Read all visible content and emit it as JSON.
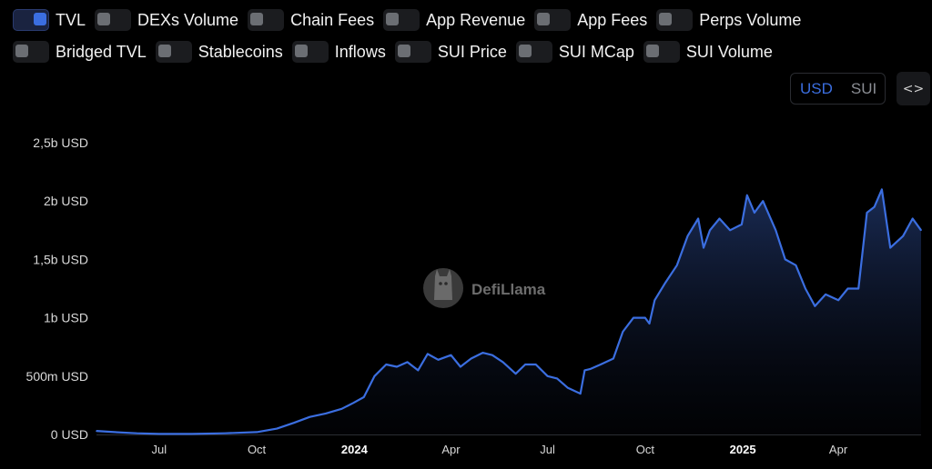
{
  "toggles": {
    "row1": [
      {
        "label": "TVL",
        "on": true
      },
      {
        "label": "DEXs Volume",
        "on": false
      },
      {
        "label": "Chain Fees",
        "on": false
      },
      {
        "label": "App Revenue",
        "on": false
      },
      {
        "label": "App Fees",
        "on": false
      },
      {
        "label": "Perps Volume",
        "on": false
      }
    ],
    "row2": [
      {
        "label": "Bridged TVL",
        "on": false
      },
      {
        "label": "Stablecoins",
        "on": false
      },
      {
        "label": "Inflows",
        "on": false
      },
      {
        "label": "SUI Price",
        "on": false
      },
      {
        "label": "SUI MCap",
        "on": false
      },
      {
        "label": "SUI Volume",
        "on": false
      }
    ]
  },
  "denomination": {
    "usd": "USD",
    "sui": "SUI",
    "active": "USD"
  },
  "embed": {
    "icon": "code-icon",
    "symbol": "<>"
  },
  "watermark": {
    "text": "DefiLlama",
    "icon": "llama-logo"
  },
  "colors": {
    "line": "#3b6ee0",
    "background": "#000000"
  },
  "chart_data": {
    "type": "area",
    "series": [
      {
        "name": "TVL",
        "x": [
          "2023-05-03",
          "2023-05-20",
          "2023-06-10",
          "2023-07-01",
          "2023-08-01",
          "2023-09-01",
          "2023-10-01",
          "2023-10-20",
          "2023-11-05",
          "2023-11-20",
          "2023-12-05",
          "2023-12-20",
          "2023-12-31",
          "2024-01-10",
          "2024-01-20",
          "2024-01-31",
          "2024-02-10",
          "2024-02-20",
          "2024-03-01",
          "2024-03-10",
          "2024-03-20",
          "2024-04-01",
          "2024-04-10",
          "2024-04-20",
          "2024-05-01",
          "2024-05-10",
          "2024-05-20",
          "2024-06-01",
          "2024-06-10",
          "2024-06-20",
          "2024-07-01",
          "2024-07-10",
          "2024-07-20",
          "2024-08-01",
          "2024-08-05",
          "2024-08-10",
          "2024-08-20",
          "2024-09-01",
          "2024-09-10",
          "2024-09-20",
          "2024-10-01",
          "2024-10-05",
          "2024-10-10",
          "2024-10-20",
          "2024-10-31",
          "2024-11-10",
          "2024-11-20",
          "2024-11-25",
          "2024-12-01",
          "2024-12-10",
          "2024-12-20",
          "2024-12-31",
          "2025-01-05",
          "2025-01-12",
          "2025-01-20",
          "2025-02-01",
          "2025-02-10",
          "2025-02-20",
          "2025-03-01",
          "2025-03-10",
          "2025-03-20",
          "2025-04-01",
          "2025-04-10",
          "2025-04-20",
          "2025-04-28",
          "2025-05-05",
          "2025-05-12",
          "2025-05-20",
          "2025-06-01",
          "2025-06-10",
          "2025-06-18"
        ],
        "values": [
          30,
          20,
          10,
          5,
          5,
          10,
          20,
          50,
          100,
          150,
          180,
          220,
          270,
          320,
          500,
          600,
          580,
          620,
          550,
          690,
          640,
          680,
          580,
          650,
          700,
          680,
          620,
          520,
          600,
          600,
          500,
          480,
          400,
          350,
          550,
          560,
          600,
          650,
          880,
          1000,
          1000,
          950,
          1150,
          1300,
          1450,
          1700,
          1850,
          1600,
          1750,
          1850,
          1750,
          1800,
          2050,
          1900,
          2000,
          1750,
          1500,
          1450,
          1250,
          1100,
          1200,
          1150,
          1250,
          1250,
          1900,
          1950,
          2100,
          1600,
          1700,
          1850,
          1750
        ]
      }
    ],
    "y_ticks": [
      {
        "value": 0,
        "label": "0 USD"
      },
      {
        "value": 500,
        "label": "500m USD"
      },
      {
        "value": 1000,
        "label": "1b USD"
      },
      {
        "value": 1500,
        "label": "1,5b USD"
      },
      {
        "value": 2000,
        "label": "2b USD"
      },
      {
        "value": 2500,
        "label": "2,5b USD"
      }
    ],
    "x_ticks": [
      {
        "date": "2023-07-01",
        "label": "Jul",
        "bold": false
      },
      {
        "date": "2023-10-01",
        "label": "Oct",
        "bold": false
      },
      {
        "date": "2024-01-01",
        "label": "2024",
        "bold": true
      },
      {
        "date": "2024-04-01",
        "label": "Apr",
        "bold": false
      },
      {
        "date": "2024-07-01",
        "label": "Jul",
        "bold": false
      },
      {
        "date": "2024-10-01",
        "label": "Oct",
        "bold": false
      },
      {
        "date": "2025-01-01",
        "label": "2025",
        "bold": true
      },
      {
        "date": "2025-04-01",
        "label": "Apr",
        "bold": false
      }
    ],
    "x_range": [
      "2023-05-03",
      "2025-06-18"
    ],
    "ylim": [
      0,
      2500
    ],
    "grid": false,
    "title": "",
    "xlabel": "",
    "ylabel": ""
  }
}
